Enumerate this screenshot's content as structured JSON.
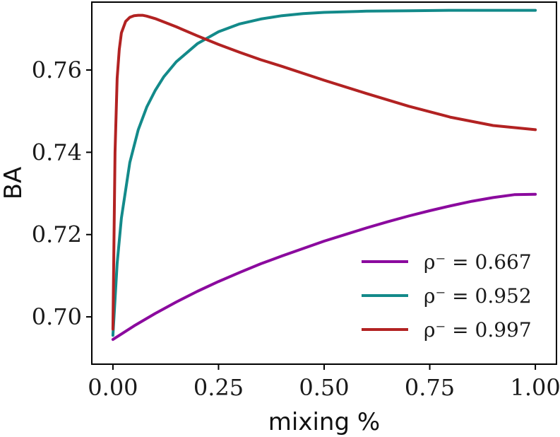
{
  "chart_data": {
    "type": "line",
    "title": "",
    "xlabel": "mixing %",
    "ylabel": "BA",
    "xlim": [
      -0.05,
      1.05
    ],
    "ylim": [
      0.6885,
      0.7765
    ],
    "xticks": [
      0.0,
      0.25,
      0.5,
      0.75,
      1.0
    ],
    "xtick_labels": [
      "0.00",
      "0.25",
      "0.50",
      "0.75",
      "1.00"
    ],
    "yticks": [
      0.7,
      0.72,
      0.74,
      0.76
    ],
    "ytick_labels": [
      "0.70",
      "0.72",
      "0.74",
      "0.76"
    ],
    "grid": false,
    "legend_position": "lower-right",
    "series": [
      {
        "name": "ρ⁻ = 0.667",
        "color": "#8b0a9e",
        "x": [
          0.0,
          0.05,
          0.1,
          0.15,
          0.2,
          0.25,
          0.3,
          0.35,
          0.4,
          0.45,
          0.5,
          0.55,
          0.6,
          0.65,
          0.7,
          0.75,
          0.8,
          0.85,
          0.9,
          0.95,
          1.0
        ],
        "y": [
          0.6945,
          0.6978,
          0.7008,
          0.7036,
          0.7062,
          0.7086,
          0.7108,
          0.7129,
          0.7148,
          0.7166,
          0.7184,
          0.72,
          0.7216,
          0.7231,
          0.7245,
          0.7258,
          0.727,
          0.7281,
          0.729,
          0.7297,
          0.7298
        ]
      },
      {
        "name": "ρ⁻ = 0.952",
        "color": "#138a8a",
        "x": [
          0.0,
          0.01,
          0.02,
          0.04,
          0.06,
          0.08,
          0.1,
          0.12,
          0.15,
          0.2,
          0.25,
          0.3,
          0.35,
          0.4,
          0.45,
          0.5,
          0.6,
          0.7,
          0.8,
          0.9,
          1.0
        ],
        "y": [
          0.6955,
          0.713,
          0.724,
          0.7375,
          0.7455,
          0.751,
          0.755,
          0.7583,
          0.762,
          0.7664,
          0.7693,
          0.7712,
          0.7724,
          0.7732,
          0.7737,
          0.774,
          0.7743,
          0.7744,
          0.7745,
          0.7745,
          0.7745
        ]
      },
      {
        "name": "ρ⁻ = 0.997",
        "color": "#b22222",
        "x": [
          0.0,
          0.005,
          0.01,
          0.015,
          0.02,
          0.03,
          0.04,
          0.05,
          0.06,
          0.07,
          0.08,
          0.1,
          0.15,
          0.2,
          0.25,
          0.3,
          0.35,
          0.4,
          0.5,
          0.6,
          0.7,
          0.8,
          0.9,
          1.0
        ],
        "y": [
          0.697,
          0.74,
          0.758,
          0.765,
          0.769,
          0.7718,
          0.7728,
          0.7732,
          0.7733,
          0.7733,
          0.7731,
          0.7725,
          0.7705,
          0.7683,
          0.7662,
          0.7643,
          0.7625,
          0.7609,
          0.7575,
          0.7543,
          0.7512,
          0.7485,
          0.7465,
          0.7455
        ]
      }
    ]
  }
}
